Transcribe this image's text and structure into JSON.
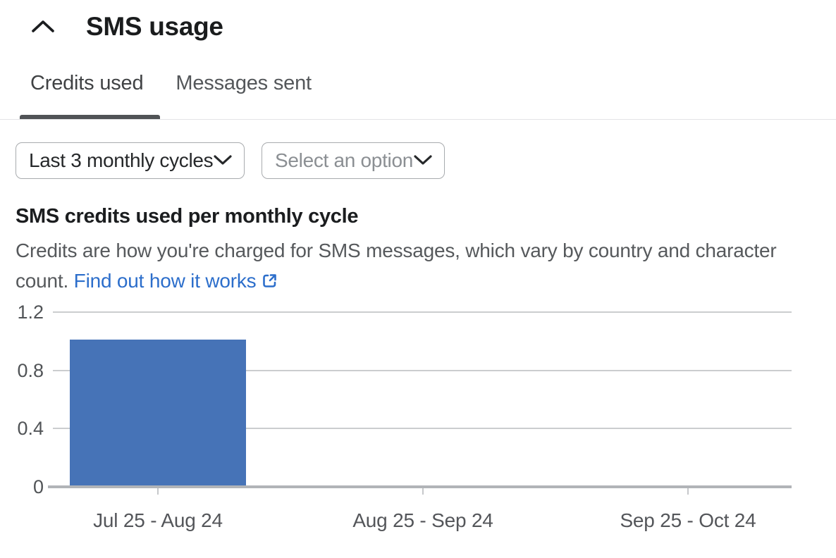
{
  "header": {
    "title": "SMS usage"
  },
  "tabs": {
    "items": [
      {
        "label": "Credits used",
        "active": true
      },
      {
        "label": "Messages sent",
        "active": false
      }
    ]
  },
  "filters": {
    "cycle_select": {
      "value": "Last 3 monthly cycles"
    },
    "option_select": {
      "placeholder": "Select an option"
    }
  },
  "chart_section": {
    "heading": "SMS credits used per monthly cycle",
    "description_line1": "Credits are how you're charged for SMS messages, which vary by country and character",
    "description_line2": "count.",
    "link_label": "Find out how it works"
  },
  "colors": {
    "bar": "#4673b7",
    "link": "#2c6ecb",
    "tab_underline": "#505356",
    "gridline": "#cbcdcf",
    "baseline": "#b1b4b8"
  },
  "chart_data": {
    "type": "bar",
    "title": "SMS credits used per monthly cycle",
    "categories": [
      "Jul 25 - Aug 24",
      "Aug 25 - Sep 24",
      "Sep 25 - Oct 24"
    ],
    "values": [
      1,
      0,
      0
    ],
    "xlabel": "",
    "ylabel": "",
    "ylim": [
      0,
      1.2
    ],
    "yticks": [
      0,
      0.4,
      0.8,
      1.2
    ],
    "grid": true,
    "legend": "none",
    "bar_color": "#4673b7"
  }
}
